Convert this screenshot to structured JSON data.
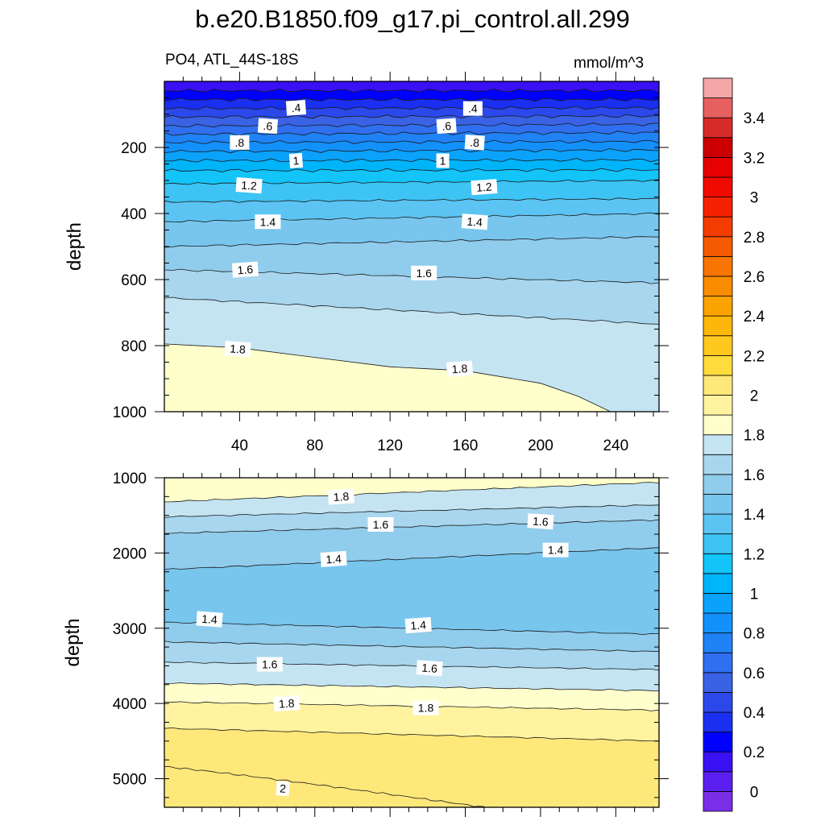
{
  "figure": {
    "title": "b.e20.B1850.f09_g17.pi_control.all.299",
    "left_label": "PO4, ATL_44S-18S",
    "right_label": "mmol/m^3"
  },
  "colorbar": {
    "levels": [
      -0.1,
      0,
      0.1,
      0.2,
      0.3,
      0.4,
      0.5,
      0.6,
      0.7,
      0.8,
      0.9,
      1.0,
      1.1,
      1.2,
      1.3,
      1.4,
      1.5,
      1.6,
      1.7,
      1.8,
      1.9,
      2.0,
      2.1,
      2.2,
      2.3,
      2.4,
      2.5,
      2.6,
      2.7,
      2.8,
      2.9,
      3.0,
      3.1,
      3.2,
      3.3,
      3.4,
      3.5,
      3.6
    ],
    "colors": [
      "#7b2ee8",
      "#5a1fef",
      "#3a10f5",
      "#0000ff",
      "#1a2ff0",
      "#2b48ea",
      "#3a62e4",
      "#2f6ff0",
      "#1f82f5",
      "#1391fb",
      "#0aa2fb",
      "#00b4fa",
      "#12c4f8",
      "#3dc3f4",
      "#5cc4f2",
      "#78c6ee",
      "#90ccec",
      "#a8d6ee",
      "#c4e4f2",
      "#ffffcc",
      "#fff3a0",
      "#ffe87a",
      "#ffdc3c",
      "#ffc81e",
      "#fdb70a",
      "#fba300",
      "#fa8c00",
      "#f77500",
      "#f55a00",
      "#f53c00",
      "#f52200",
      "#f00a00",
      "#e60000",
      "#cc0000",
      "#d62b2b",
      "#e66060",
      "#f5a6a6"
    ],
    "tick_labels": [
      "0",
      "0.2",
      "0.4",
      "0.6",
      "0.8",
      "1",
      "1.2",
      "1.4",
      "1.6",
      "1.8",
      "2",
      "2.2",
      "2.4",
      "2.6",
      "2.8",
      "3",
      "3.2",
      "3.4"
    ],
    "tick_values": [
      0,
      0.2,
      0.4,
      0.6,
      0.8,
      1.0,
      1.2,
      1.4,
      1.6,
      1.8,
      2.0,
      2.2,
      2.4,
      2.6,
      2.8,
      3.0,
      3.2,
      3.4
    ]
  },
  "chart_data": [
    {
      "type": "contour",
      "title": "PO4, ATL_44S-18S",
      "ylabel": "depth",
      "xlim": [
        0,
        263
      ],
      "ylim": [
        1000,
        0
      ],
      "x_ticks": [
        40,
        80,
        120,
        160,
        200,
        240
      ],
      "x_tick_labels": [
        "40",
        "80",
        "120",
        "160",
        "200",
        "240"
      ],
      "y_ticks": [
        200,
        400,
        600,
        800,
        1000
      ],
      "y_tick_labels": [
        "200",
        "400",
        "600",
        "800",
        "1000"
      ],
      "contour_levels": [
        0.2,
        0.3,
        0.4,
        0.5,
        0.6,
        0.7,
        0.8,
        0.9,
        1.0,
        1.1,
        1.2,
        1.3,
        1.4,
        1.5,
        1.6,
        1.7,
        1.8
      ],
      "contours": [
        {
          "level": 0.2,
          "depth_at_x0": 28,
          "depth_at_xmax": 28
        },
        {
          "level": 0.3,
          "depth_at_x0": 55,
          "depth_at_xmax": 55
        },
        {
          "level": 0.4,
          "depth_at_x0": 82,
          "depth_at_xmax": 80
        },
        {
          "level": 0.5,
          "depth_at_x0": 108,
          "depth_at_xmax": 105
        },
        {
          "level": 0.6,
          "depth_at_x0": 135,
          "depth_at_xmax": 130
        },
        {
          "level": 0.7,
          "depth_at_x0": 160,
          "depth_at_xmax": 155
        },
        {
          "level": 0.8,
          "depth_at_x0": 185,
          "depth_at_xmax": 182
        },
        {
          "level": 0.9,
          "depth_at_x0": 212,
          "depth_at_xmax": 208
        },
        {
          "level": 1.0,
          "depth_at_x0": 240,
          "depth_at_xmax": 238
        },
        {
          "level": 1.1,
          "depth_at_x0": 270,
          "depth_at_xmax": 268
        },
        {
          "level": 1.2,
          "depth_at_x0": 310,
          "depth_at_xmax": 300
        },
        {
          "level": 1.3,
          "depth_at_x0": 365,
          "depth_at_xmax": 355
        },
        {
          "level": 1.4,
          "depth_at_x0": 425,
          "depth_at_xmax": 400
        },
        {
          "level": 1.5,
          "depth_at_x0": 500,
          "depth_at_xmax": 470
        },
        {
          "level": 1.6,
          "depth_at_x0": 570,
          "depth_at_xmax": 610
        },
        {
          "level": 1.7,
          "depth_at_x0": 655,
          "depth_at_xmax": 735
        },
        {
          "level": 1.8,
          "depth_at_x0": 795,
          "depth_at_x": [
            0,
            40,
            80,
            120,
            160,
            200,
            220,
            237
          ],
          "depth_points": [
            795,
            810,
            835,
            860,
            880,
            915,
            950,
            1000
          ]
        }
      ],
      "contour_labels": [
        {
          "text": ".4",
          "x": 70,
          "y": 80
        },
        {
          "text": ".4",
          "x": 164,
          "y": 82
        },
        {
          "text": ".6",
          "x": 55,
          "y": 135
        },
        {
          "text": ".6",
          "x": 150,
          "y": 135
        },
        {
          "text": ".8",
          "x": 40,
          "y": 185
        },
        {
          "text": ".8",
          "x": 165,
          "y": 185
        },
        {
          "text": "1",
          "x": 70,
          "y": 240
        },
        {
          "text": "1",
          "x": 148,
          "y": 240
        },
        {
          "text": "1.2",
          "x": 45,
          "y": 315
        },
        {
          "text": "1.2",
          "x": 170,
          "y": 320
        },
        {
          "text": "1.4",
          "x": 55,
          "y": 425
        },
        {
          "text": "1.4",
          "x": 165,
          "y": 425
        },
        {
          "text": "1.6",
          "x": 43,
          "y": 570
        },
        {
          "text": "1.6",
          "x": 138,
          "y": 580
        },
        {
          "text": "1.8",
          "x": 39,
          "y": 810
        },
        {
          "text": "1.8",
          "x": 157,
          "y": 870
        }
      ]
    },
    {
      "type": "contour",
      "ylabel": "depth",
      "xlim": [
        0,
        263
      ],
      "ylim": [
        5380,
        1000
      ],
      "y_ticks": [
        1000,
        2000,
        3000,
        4000,
        5000
      ],
      "y_tick_labels": [
        "1000",
        "2000",
        "3000",
        "4000",
        "5000"
      ],
      "contour_levels": [
        1.4,
        1.5,
        1.6,
        1.7,
        1.8,
        1.9,
        2.0
      ],
      "contours": [
        {
          "level": 1.8,
          "depth_at_x0": 1320,
          "depth_at_xmax": 1060
        },
        {
          "level": 1.7,
          "depth_at_x0": 1520,
          "depth_at_xmax": 1360
        },
        {
          "level": 1.6,
          "depth_at_x0": 1740,
          "depth_at_xmax": 1560
        },
        {
          "level": 1.5,
          "depth_at_x0": 2220,
          "depth_at_xmax": 1930
        },
        {
          "level": 1.5,
          "depth_at_x0": 2920,
          "depth_at_xmax": 3080
        },
        {
          "level": 1.6,
          "depth_at_x0": 3180,
          "depth_at_xmax": 3310
        },
        {
          "level": 1.7,
          "depth_at_x0": 3450,
          "depth_at_xmax": 3550
        },
        {
          "level": 1.8,
          "depth_at_x0": 3730,
          "depth_at_xmax": 3830
        },
        {
          "level": 1.9,
          "depth_at_x0": 3980,
          "depth_at_xmax": 4090
        },
        {
          "level": 2.0,
          "depth_at_x0": 4330,
          "depth_at_xmax": 4500
        },
        {
          "level": 2.1,
          "depth_at_x0": 4840,
          "depth_at_x_end": 170,
          "depth_end": 5380
        }
      ],
      "contour_labels": [
        {
          "text": "1.8",
          "x": 94,
          "y": 1250
        },
        {
          "text": "1.6",
          "x": 115,
          "y": 1620
        },
        {
          "text": "1.6",
          "x": 200,
          "y": 1580
        },
        {
          "text": "1.4",
          "x": 90,
          "y": 2080
        },
        {
          "text": "1.4",
          "x": 208,
          "y": 1960
        },
        {
          "text": "1.4",
          "x": 24,
          "y": 2880
        },
        {
          "text": "1.4",
          "x": 135,
          "y": 2960
        },
        {
          "text": "1.6",
          "x": 56,
          "y": 3480
        },
        {
          "text": "1.6",
          "x": 141,
          "y": 3530
        },
        {
          "text": "1.8",
          "x": 65,
          "y": 4000
        },
        {
          "text": "1.8",
          "x": 139,
          "y": 4060
        },
        {
          "text": "2",
          "x": 63,
          "y": 5130
        }
      ]
    }
  ]
}
